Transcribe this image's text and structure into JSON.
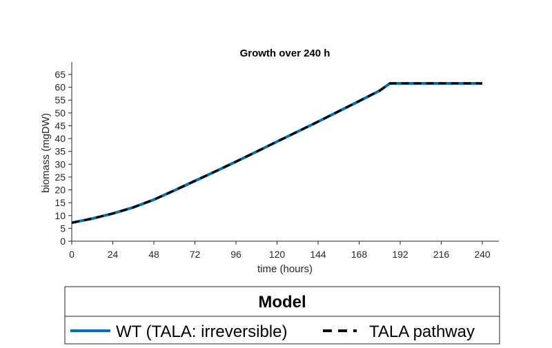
{
  "chart_data": {
    "type": "line",
    "title": "Growth over 240 h",
    "xlabel": "time (hours)",
    "ylabel": "biomass (mgDW)",
    "xlim": [
      0,
      240
    ],
    "ylim": [
      0,
      65
    ],
    "xticks": [
      "0",
      "24",
      "48",
      "72",
      "96",
      "120",
      "144",
      "168",
      "192",
      "216",
      "240"
    ],
    "yticks": [
      "0",
      "5",
      "10",
      "15",
      "20",
      "25",
      "30",
      "35",
      "40",
      "45",
      "50",
      "55",
      "60",
      "65"
    ],
    "grid": false,
    "legend": {
      "title": "Model",
      "placement": "below-plot"
    },
    "series": [
      {
        "name": "WT (TALA: irreversible)",
        "color": "#0072BD",
        "style": "solid",
        "x": [
          0,
          12,
          24,
          36,
          48,
          60,
          72,
          84,
          96,
          108,
          120,
          132,
          144,
          156,
          168,
          180,
          186,
          192,
          204,
          216,
          228,
          240
        ],
        "y": [
          7.2,
          8.8,
          10.8,
          13.2,
          16.2,
          19.8,
          23.5,
          27.2,
          31.0,
          34.9,
          38.8,
          42.7,
          46.6,
          50.6,
          54.6,
          58.7,
          61.5,
          61.5,
          61.5,
          61.5,
          61.5,
          61.5
        ]
      },
      {
        "name": "TALA pathway",
        "color": "#000000",
        "style": "dashed",
        "x": [
          0,
          12,
          24,
          36,
          48,
          60,
          72,
          84,
          96,
          108,
          120,
          132,
          144,
          156,
          168,
          180,
          186,
          192,
          204,
          216,
          228,
          240
        ],
        "y": [
          7.2,
          8.8,
          10.8,
          13.2,
          16.2,
          19.8,
          23.5,
          27.2,
          31.0,
          34.9,
          38.8,
          42.7,
          46.6,
          50.6,
          54.6,
          58.7,
          61.5,
          61.5,
          61.5,
          61.5,
          61.5,
          61.5
        ]
      }
    ]
  }
}
